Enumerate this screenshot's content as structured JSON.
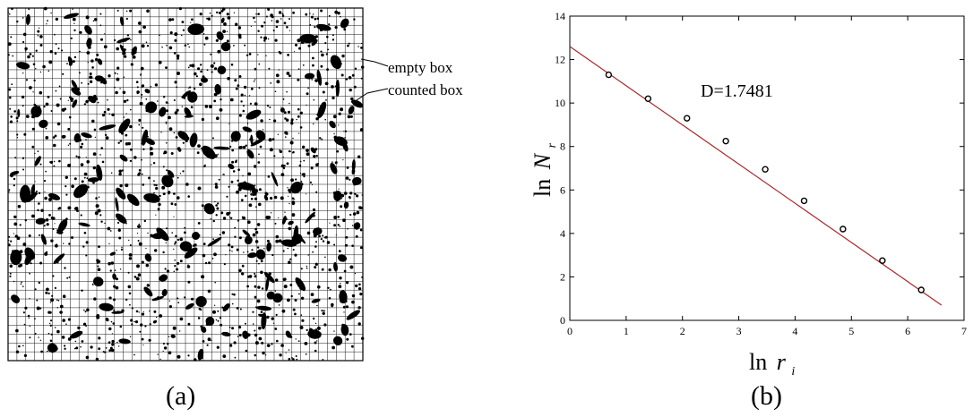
{
  "panel_a": {
    "caption": "(a)",
    "annotations": [
      {
        "id": "empty",
        "label": "empty box"
      },
      {
        "id": "counted",
        "label": "counted box"
      }
    ],
    "grid_divisions": 40
  },
  "panel_b": {
    "caption": "(b)"
  },
  "chart_data": {
    "type": "scatter",
    "title": "",
    "annotation": "D=1.7481",
    "xlabel": "ln r_i",
    "ylabel": "ln N_r",
    "xlabel_main": "ln",
    "xlabel_sym": "r",
    "xlabel_sub": "i",
    "ylabel_main": "ln",
    "ylabel_sym": "N",
    "ylabel_sub": "r",
    "xlim": [
      0,
      7
    ],
    "ylim": [
      0,
      14
    ],
    "xticks": [
      0,
      1,
      2,
      3,
      4,
      5,
      6,
      7
    ],
    "yticks": [
      0,
      2,
      4,
      6,
      8,
      10,
      12,
      14
    ],
    "ytick_labels": [
      "0",
      "2",
      "4",
      "6",
      "8",
      "10",
      "12",
      "14"
    ],
    "grid": false,
    "series": [
      {
        "marker": "open-circle",
        "color": "#000000",
        "x": [
          0.69,
          1.39,
          2.08,
          2.77,
          3.47,
          4.16,
          4.85,
          5.55,
          6.24
        ],
        "y": [
          11.3,
          10.2,
          9.3,
          8.25,
          6.95,
          5.5,
          4.2,
          2.75,
          1.4
        ]
      }
    ],
    "fit_line": {
      "color": "#a52a2a",
      "x": [
        0,
        6.6
      ],
      "y": [
        12.6,
        0.7
      ]
    }
  }
}
